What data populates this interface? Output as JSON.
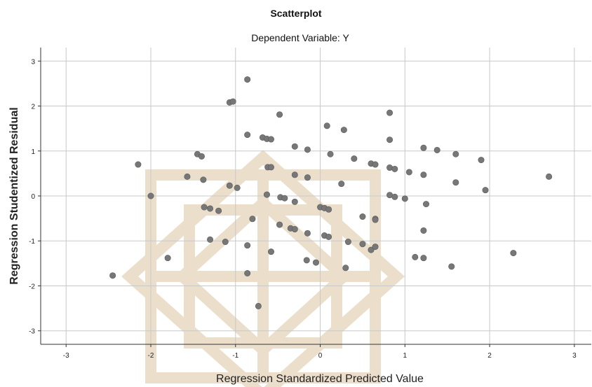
{
  "chart_data": {
    "type": "scatter",
    "title": "Scatterplot",
    "subtitle": "Dependent Variable: Y",
    "xlabel": "Regression Standardized Predicted Value",
    "ylabel": "Regression Studentized Residual",
    "xlim": [
      -3.3,
      3.2
    ],
    "ylim": [
      -3.3,
      3.3
    ],
    "xticks": [
      -3,
      -2,
      -1,
      0,
      1,
      2,
      3
    ],
    "yticks": [
      3,
      2,
      1,
      0,
      -1,
      -2,
      -3
    ],
    "xtick_labels": [
      "-3",
      "-2",
      "-1",
      "0",
      "1",
      "2",
      "3"
    ],
    "ytick_labels": [
      "3",
      "2",
      "1",
      "0",
      "-1",
      "-2",
      "-3"
    ],
    "grid": true,
    "point_color": "#777777",
    "watermark_color": "#e9dcc6",
    "points": [
      [
        -2.45,
        -1.77
      ],
      [
        -2.15,
        0.7
      ],
      [
        -2.0,
        0.0
      ],
      [
        -1.8,
        -1.38
      ],
      [
        -1.57,
        0.43
      ],
      [
        -1.45,
        0.93
      ],
      [
        -1.4,
        0.88
      ],
      [
        -1.38,
        0.36
      ],
      [
        -1.37,
        -0.25
      ],
      [
        -1.3,
        -0.28
      ],
      [
        -1.3,
        -0.97
      ],
      [
        -1.2,
        -0.33
      ],
      [
        -1.12,
        -1.02
      ],
      [
        -1.07,
        2.08
      ],
      [
        -1.03,
        2.1
      ],
      [
        -1.07,
        0.23
      ],
      [
        -0.98,
        0.18
      ],
      [
        -0.86,
        2.59
      ],
      [
        -0.86,
        1.36
      ],
      [
        -0.86,
        -1.1
      ],
      [
        -0.86,
        -1.72
      ],
      [
        -0.8,
        -0.51
      ],
      [
        -0.73,
        -2.45
      ],
      [
        -0.68,
        1.3
      ],
      [
        -0.63,
        1.27
      ],
      [
        -0.58,
        1.26
      ],
      [
        -0.62,
        0.64
      ],
      [
        -0.58,
        0.64
      ],
      [
        -0.63,
        0.03
      ],
      [
        -0.58,
        -1.24
      ],
      [
        -0.48,
        1.81
      ],
      [
        -0.48,
        -0.64
      ],
      [
        -0.47,
        -0.03
      ],
      [
        -0.42,
        -0.05
      ],
      [
        -0.35,
        -0.72
      ],
      [
        -0.3,
        -0.74
      ],
      [
        -0.3,
        -0.13
      ],
      [
        -0.3,
        1.1
      ],
      [
        -0.3,
        0.47
      ],
      [
        -0.15,
        1.03
      ],
      [
        -0.15,
        0.41
      ],
      [
        -0.15,
        -0.83
      ],
      [
        -0.16,
        -1.43
      ],
      [
        -0.05,
        -1.48
      ],
      [
        0.0,
        -0.25
      ],
      [
        0.05,
        -0.27
      ],
      [
        0.05,
        -0.88
      ],
      [
        0.1,
        -0.91
      ],
      [
        0.1,
        -0.3
      ],
      [
        0.08,
        1.56
      ],
      [
        0.12,
        0.93
      ],
      [
        0.25,
        0.27
      ],
      [
        0.28,
        1.47
      ],
      [
        0.3,
        -1.6
      ],
      [
        0.33,
        -1.02
      ],
      [
        0.4,
        0.83
      ],
      [
        0.5,
        -0.46
      ],
      [
        0.5,
        -1.07
      ],
      [
        0.6,
        -1.2
      ],
      [
        0.6,
        0.72
      ],
      [
        0.65,
        0.7
      ],
      [
        0.65,
        -0.51
      ],
      [
        0.65,
        -0.53
      ],
      [
        0.65,
        -1.13
      ],
      [
        0.82,
        1.85
      ],
      [
        0.82,
        1.25
      ],
      [
        0.82,
        0.63
      ],
      [
        0.82,
        0.02
      ],
      [
        0.88,
        0.6
      ],
      [
        0.88,
        -0.02
      ],
      [
        1.0,
        -0.06
      ],
      [
        1.05,
        0.53
      ],
      [
        1.12,
        -1.36
      ],
      [
        1.22,
        1.07
      ],
      [
        1.22,
        0.47
      ],
      [
        1.22,
        -0.77
      ],
      [
        1.22,
        -1.38
      ],
      [
        1.25,
        -0.18
      ],
      [
        1.38,
        1.02
      ],
      [
        1.55,
        -1.57
      ],
      [
        1.6,
        0.93
      ],
      [
        1.6,
        0.3
      ],
      [
        1.9,
        0.8
      ],
      [
        1.95,
        0.13
      ],
      [
        2.28,
        -1.27
      ],
      [
        2.7,
        0.43
      ]
    ]
  }
}
